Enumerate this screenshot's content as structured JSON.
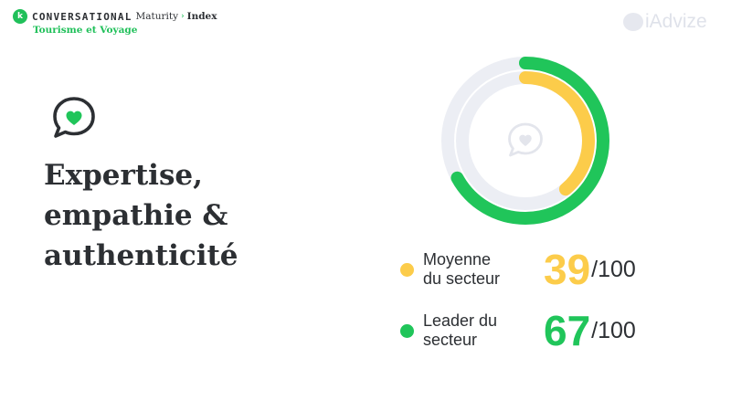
{
  "brand": {
    "badge": "k",
    "conversational": "CONVERSATIONAL",
    "maturity": "Maturity",
    "separator": "›",
    "index": "Index",
    "subtitle": "Tourisme et Voyage"
  },
  "logo": {
    "text": "iAdvize"
  },
  "title": {
    "line1": "Expertise,",
    "line2": "empathie &",
    "line3": "authenticité"
  },
  "icons": {
    "title_icon": "heart-chat-bubble-icon",
    "donut_center_icon": "heart-chat-bubble-icon"
  },
  "colors": {
    "average": "#fccc4a",
    "leader": "#20c55a",
    "track": "#eceef4",
    "text": "#2c2f33"
  },
  "metrics": {
    "average": {
      "label_line1": "Moyenne",
      "label_line2": "du secteur",
      "value": "39",
      "max": "/100",
      "score": 39
    },
    "leader": {
      "label_line1": "Leader du",
      "label_line2": "secteur",
      "value": "67",
      "max": "/100",
      "score": 67
    }
  }
}
